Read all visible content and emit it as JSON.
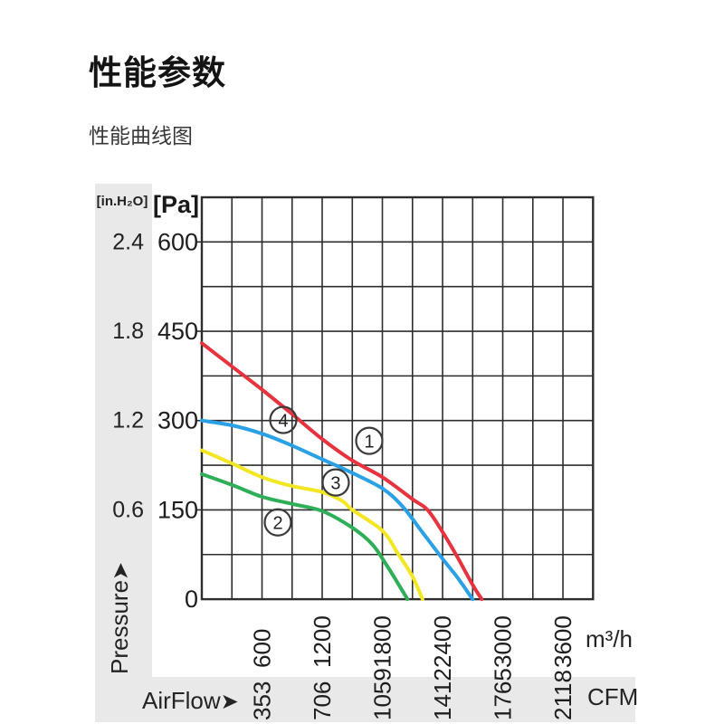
{
  "page": {
    "title": "性能参数",
    "subtitle": "性能曲线图"
  },
  "chart_data": {
    "type": "line",
    "title": "性能曲线图",
    "grid": true,
    "x_axis": {
      "label": "AirFlow",
      "arrow": "➤",
      "unit_top_row": "m³/h",
      "unit_bottom_row": "CFM",
      "range": [
        0,
        3900
      ],
      "grid_step": 300,
      "ticks_m3h": [
        600,
        1200,
        1800,
        2400,
        3000,
        3600
      ],
      "ticks_cfm": [
        353,
        706,
        1059,
        1412,
        1765,
        2118
      ]
    },
    "y_axis": {
      "label": "Pressure",
      "arrow": "➤",
      "unit_left_header": "[in.H₂O]",
      "unit_right_header": "[Pa]",
      "range": [
        0,
        675
      ],
      "grid_step": 75,
      "ticks_pa": [
        600,
        450,
        300,
        150,
        0
      ],
      "ticks_inh2o": [
        "2.4",
        "1.8",
        "1.2",
        "0.6"
      ]
    },
    "series": [
      {
        "name": "1",
        "color": "#e6333e",
        "label_pos": [
          1669,
          266
        ],
        "points": [
          [
            0,
            430
          ],
          [
            300,
            391
          ],
          [
            600,
            352
          ],
          [
            900,
            311
          ],
          [
            1200,
            269
          ],
          [
            1500,
            233
          ],
          [
            1800,
            205
          ],
          [
            2100,
            168
          ],
          [
            2250,
            150
          ],
          [
            2400,
            113
          ],
          [
            2550,
            70
          ],
          [
            2700,
            24
          ],
          [
            2790,
            0
          ]
        ]
      },
      {
        "name": "2",
        "color": "#2fae58",
        "label_pos": [
          758,
          129
        ],
        "points": [
          [
            0,
            210
          ],
          [
            300,
            192
          ],
          [
            600,
            172
          ],
          [
            900,
            160
          ],
          [
            1200,
            148
          ],
          [
            1500,
            120
          ],
          [
            1700,
            92
          ],
          [
            1850,
            55
          ],
          [
            1950,
            28
          ],
          [
            2050,
            0
          ]
        ]
      },
      {
        "name": "3",
        "color": "#f2e722",
        "label_pos": [
          1335,
          196
        ],
        "points": [
          [
            0,
            250
          ],
          [
            300,
            228
          ],
          [
            600,
            205
          ],
          [
            900,
            190
          ],
          [
            1200,
            180
          ],
          [
            1400,
            165
          ],
          [
            1500,
            150
          ],
          [
            1800,
            115
          ],
          [
            1950,
            78
          ],
          [
            2100,
            38
          ],
          [
            2200,
            0
          ]
        ]
      },
      {
        "name": "4",
        "color": "#2aa0e5",
        "label_pos": [
          812,
          301
        ],
        "points": [
          [
            0,
            300
          ],
          [
            300,
            292
          ],
          [
            600,
            278
          ],
          [
            900,
            258
          ],
          [
            1200,
            235
          ],
          [
            1500,
            212
          ],
          [
            1800,
            186
          ],
          [
            2000,
            156
          ],
          [
            2200,
            112
          ],
          [
            2400,
            68
          ],
          [
            2550,
            36
          ],
          [
            2700,
            0
          ]
        ]
      }
    ]
  },
  "colors": {
    "strip_bg": "#e9e9e9",
    "grid": "#2d2d2d",
    "text": "#1e1e1e"
  }
}
